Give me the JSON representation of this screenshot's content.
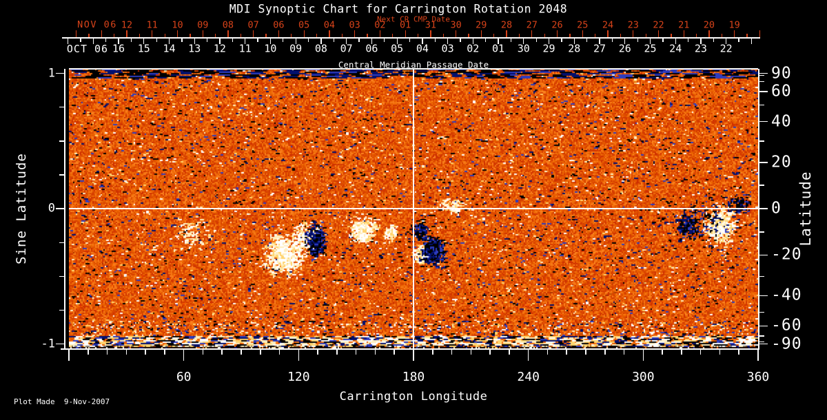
{
  "title": "MDI Synoptic Chart for Carrington Rotation 2048",
  "footer": {
    "plot_made": "Plot Made  9-Nov-2007"
  },
  "colors": {
    "background": "#000000",
    "axis": "#ffffff",
    "red": "#d8431a",
    "text": "#ffffff"
  },
  "top_axis": {
    "red_title": "Next CR CMP Date",
    "red_month": "NOV 06",
    "red_days": [
      "12",
      "11",
      "10",
      "09",
      "08",
      "07",
      "06",
      "05",
      "04",
      "03",
      "02",
      "01",
      "31",
      "30",
      "29",
      "28",
      "27",
      "26",
      "25",
      "24",
      "23",
      "22",
      "21",
      "20",
      "19"
    ],
    "white_month": "OCT 06",
    "white_days": [
      "16",
      "15",
      "14",
      "13",
      "12",
      "11",
      "10",
      "09",
      "08",
      "07",
      "06",
      "05",
      "04",
      "03",
      "02",
      "01",
      "30",
      "29",
      "28",
      "27",
      "26",
      "25",
      "24",
      "23",
      "22"
    ],
    "white_title": "Central Meridian Passage Date"
  },
  "left_axis": {
    "label": "Sine Latitude",
    "tick_labels": [
      "1",
      "0",
      "-1"
    ],
    "tick_values": [
      1,
      0,
      -1
    ],
    "minor_step": 0.25
  },
  "right_axis": {
    "label": "Latitude",
    "labeled_degrees": [
      90,
      60,
      40,
      20,
      0,
      -20,
      -40,
      -60,
      -90
    ],
    "minor_step_degrees": 10
  },
  "bottom_axis": {
    "label": "Carrington Longitude",
    "labeled_degrees": [
      60,
      120,
      180,
      240,
      300,
      360
    ],
    "minor_step_degrees": 10
  },
  "chart_data": {
    "type": "heatmap",
    "title": "MDI Synoptic Chart for Carrington Rotation 2048",
    "xlabel": "Carrington Longitude",
    "ylabel_left": "Sine Latitude",
    "ylabel_right": "Latitude",
    "x_range_degrees": [
      0,
      360
    ],
    "y_range_sine_latitude": [
      -1,
      1
    ],
    "grid": false,
    "crosshair": {
      "longitude": 180,
      "sine_latitude": 0
    },
    "cmp_date_axis": {
      "current_rotation_month_label": "OCT 06",
      "next_rotation_month_label": "NOV 06",
      "next_cr_axis_title": "Next CR CMP Date",
      "axis_title": "Central Meridian Passage Date",
      "days_per_rotation": 27.2753
    },
    "colormap": [
      "#000000",
      "#001070",
      "#2838b0",
      "#8c1600",
      "#c83200",
      "#e84818",
      "#ff6a24",
      "#ff9850",
      "#ffd878",
      "#ffeebb",
      "#ffffff"
    ],
    "background_field": "speckled orange-red quiet-sun magnetic noise with dark streak band at top edge, bright white/yellow streak band at bottom edge, faint diagonal scan streaks in lower half",
    "active_regions": [
      {
        "name": "AR-left-plage",
        "lon": 112,
        "sine_lat": -0.33,
        "dlon": 9,
        "dsine": 0.13,
        "n": 600,
        "polarity": "bright"
      },
      {
        "name": "AR-left-plage-2",
        "lon": 124,
        "sine_lat": -0.2,
        "dlon": 7,
        "dsine": 0.09,
        "n": 240,
        "polarity": "bright"
      },
      {
        "name": "AR-left-spots",
        "lon": 129,
        "sine_lat": -0.23,
        "dlon": 5,
        "dsine": 0.11,
        "n": 300,
        "polarity": "dark"
      },
      {
        "name": "AR-left-plage-3",
        "lon": 154,
        "sine_lat": -0.15,
        "dlon": 7,
        "dsine": 0.08,
        "n": 300,
        "polarity": "bright"
      },
      {
        "name": "AR-left-plage-4",
        "lon": 168,
        "sine_lat": -0.17,
        "dlon": 3,
        "dsine": 0.05,
        "n": 90,
        "polarity": "bright"
      },
      {
        "name": "AR-center-plage",
        "lon": 184,
        "sine_lat": -0.33,
        "dlon": 3.5,
        "dsine": 0.06,
        "n": 240,
        "polarity": "bright"
      },
      {
        "name": "AR-center-spots",
        "lon": 190,
        "sine_lat": -0.3,
        "dlon": 6,
        "dsine": 0.1,
        "n": 400,
        "polarity": "dark"
      },
      {
        "name": "AR-center-spots-2",
        "lon": 183,
        "sine_lat": -0.16,
        "dlon": 4,
        "dsine": 0.06,
        "n": 110,
        "polarity": "dark"
      },
      {
        "name": "AR-equator-plage",
        "lon": 200,
        "sine_lat": 0.02,
        "dlon": 8,
        "dsine": 0.05,
        "n": 70,
        "polarity": "bright"
      },
      {
        "name": "AR-right-plage",
        "lon": 340,
        "sine_lat": -0.12,
        "dlon": 7,
        "dsine": 0.12,
        "n": 470,
        "polarity": "bright"
      },
      {
        "name": "AR-right-spots-w",
        "lon": 323,
        "sine_lat": -0.13,
        "dlon": 5,
        "dsine": 0.07,
        "n": 130,
        "polarity": "dark"
      },
      {
        "name": "AR-right-spots-e",
        "lon": 350,
        "sine_lat": 0.03,
        "dlon": 5,
        "dsine": 0.06,
        "n": 100,
        "polarity": "dark"
      },
      {
        "name": "AR-right-scatter",
        "lon": 330,
        "sine_lat": -0.1,
        "dlon": 18,
        "dsine": 0.15,
        "n": 140,
        "polarity": "dark"
      },
      {
        "name": "scatter-west",
        "lon": 64,
        "sine_lat": -0.18,
        "dlon": 10,
        "dsine": 0.12,
        "n": 80,
        "polarity": "bright"
      }
    ]
  }
}
